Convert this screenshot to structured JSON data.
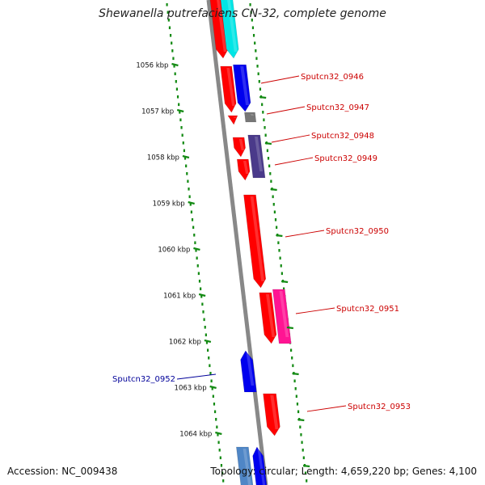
{
  "title": "Shewanella putrefaciens CN-32, complete genome",
  "accession": "Accession: NC_009438",
  "summary": "Topology: circular; Length: 4,659,220 bp; Genes: 4,100",
  "colors": {
    "backbone": "#888888",
    "ticks": "#138a13",
    "gene_red": "#ff0000",
    "gene_blue": "#0000ee",
    "gene_cyan": "#00e5e5",
    "gene_gray": "#777777",
    "gene_slate": "#4a3a8a",
    "gene_pink": "#ff1493",
    "gene_steel": "#4f86c6",
    "label_red": "#cc0000",
    "label_blue": "#000099"
  },
  "scale_labels": [
    "1056 kbp",
    "1057 kbp",
    "1058 kbp",
    "1059 kbp",
    "1060 kbp",
    "1061 kbp",
    "1062 kbp",
    "1063 kbp",
    "1064 kbp"
  ],
  "gene_labels": [
    {
      "name": "Sputcn32_0946",
      "color": "red"
    },
    {
      "name": "Sputcn32_0947",
      "color": "red"
    },
    {
      "name": "Sputcn32_0948",
      "color": "red"
    },
    {
      "name": "Sputcn32_0949",
      "color": "red"
    },
    {
      "name": "Sputcn32_0950",
      "color": "red"
    },
    {
      "name": "Sputcn32_0951",
      "color": "red"
    },
    {
      "name": "Sputcn32_0952",
      "color": "blue"
    },
    {
      "name": "Sputcn32_0953",
      "color": "red"
    }
  ]
}
